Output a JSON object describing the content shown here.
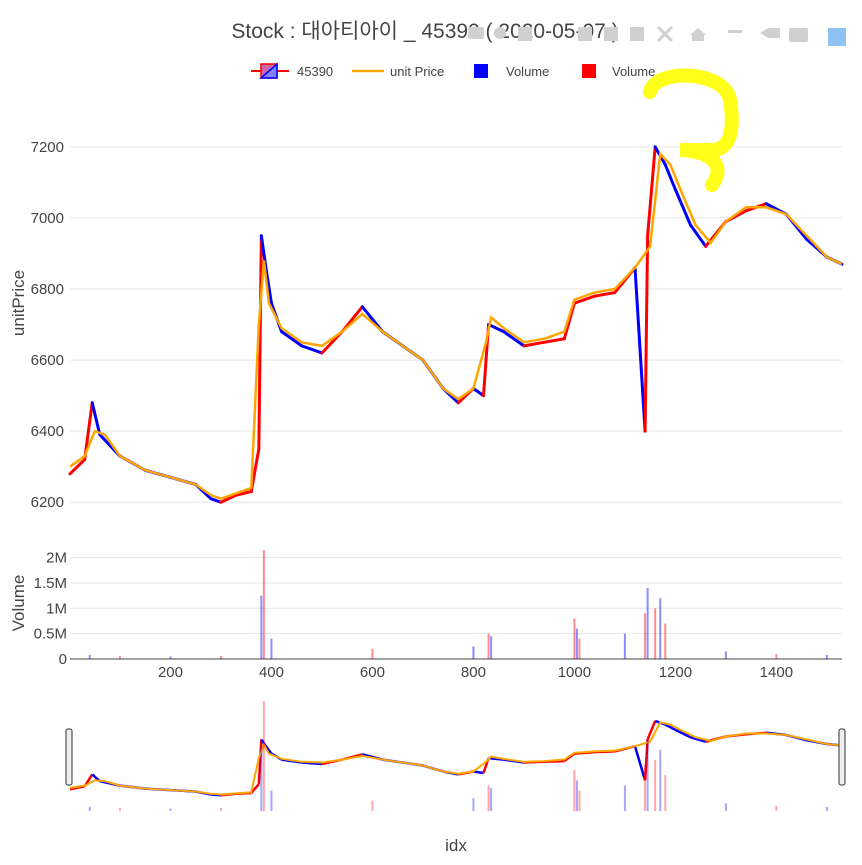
{
  "chart_data": {
    "type": "line",
    "title": "Stock :  대아티아이 _ 45390 ( 2020-05-07 )",
    "xlabel": "idx",
    "ylabel": "unitPrice",
    "volume_label": "Volume",
    "xlim": [
      1,
      1530
    ],
    "ylim": [
      6150,
      7360
    ],
    "volume_ylim": [
      0,
      2150000
    ],
    "x_ticks": [
      "200",
      "400",
      "600",
      "800",
      "1000",
      "1200",
      "1400"
    ],
    "x_tick_values": [
      200,
      400,
      600,
      800,
      1000,
      1200,
      1400
    ],
    "y_ticks": [
      "6200",
      "6400",
      "6600",
      "6800",
      "7000",
      "7200"
    ],
    "y_tick_values": [
      6200,
      6400,
      6600,
      6800,
      7000,
      7200
    ],
    "volume_ticks": [
      "0",
      "0.5M",
      "1M",
      "1.5M",
      "2M"
    ],
    "volume_tick_values": [
      0,
      500000,
      1000000,
      1500000,
      2000000
    ],
    "legend": [
      "45390",
      "unit Price",
      "Volume",
      "Volume"
    ],
    "legend_placement": "top-center",
    "grid": true,
    "colors": {
      "up": "#ff0000",
      "down": "#0000ff",
      "unit_price": "#ffa500",
      "volume_up": "#ff0000",
      "volume_down": "#0000ff",
      "annotation": "#ffff00"
    },
    "series": [
      {
        "name": "45390",
        "kind": "candlestick",
        "x": [
          1,
          30,
          45,
          60,
          100,
          150,
          200,
          250,
          280,
          300,
          330,
          360,
          375,
          380,
          390,
          400,
          420,
          460,
          500,
          540,
          580,
          620,
          660,
          700,
          740,
          770,
          800,
          820,
          830,
          860,
          900,
          940,
          980,
          1000,
          1040,
          1080,
          1120,
          1140,
          1145,
          1160,
          1180,
          1200,
          1230,
          1260,
          1300,
          1340,
          1380,
          1420,
          1460,
          1500,
          1530
        ],
        "close": [
          6280,
          6320,
          6480,
          6390,
          6330,
          6290,
          6270,
          6250,
          6210,
          6200,
          6220,
          6230,
          6350,
          6950,
          6850,
          6760,
          6680,
          6640,
          6620,
          6680,
          6750,
          6680,
          6640,
          6600,
          6520,
          6480,
          6520,
          6500,
          6700,
          6680,
          6640,
          6650,
          6660,
          6760,
          6780,
          6790,
          6860,
          6400,
          6950,
          7200,
          7150,
          7080,
          6980,
          6920,
          6990,
          7020,
          7040,
          7010,
          6940,
          6890,
          6870
        ]
      },
      {
        "name": "unit Price",
        "kind": "line",
        "x": [
          1,
          30,
          50,
          70,
          100,
          150,
          200,
          250,
          280,
          300,
          330,
          360,
          375,
          385,
          395,
          420,
          460,
          500,
          540,
          580,
          620,
          660,
          700,
          740,
          770,
          800,
          825,
          835,
          860,
          900,
          940,
          980,
          1000,
          1040,
          1080,
          1120,
          1150,
          1170,
          1190,
          1210,
          1240,
          1270,
          1300,
          1340,
          1380,
          1420,
          1460,
          1500,
          1530
        ],
        "values": [
          6300,
          6330,
          6400,
          6390,
          6330,
          6290,
          6270,
          6250,
          6220,
          6210,
          6225,
          6240,
          6700,
          6880,
          6760,
          6690,
          6650,
          6640,
          6680,
          6730,
          6680,
          6640,
          6600,
          6520,
          6490,
          6520,
          6650,
          6720,
          6690,
          6650,
          6660,
          6680,
          6770,
          6790,
          6800,
          6860,
          6920,
          7180,
          7150,
          7080,
          6980,
          6930,
          6990,
          7030,
          7030,
          7010,
          6950,
          6890,
          6870
        ]
      },
      {
        "name": "Volume",
        "kind": "bar",
        "x": [
          40,
          100,
          200,
          300,
          380,
          385,
          400,
          600,
          800,
          830,
          835,
          1000,
          1005,
          1010,
          1100,
          1140,
          1145,
          1160,
          1170,
          1180,
          1300,
          1400,
          1500
        ],
        "values": [
          80000,
          60000,
          50000,
          60000,
          1250000,
          2150000,
          400000,
          200000,
          250000,
          500000,
          450000,
          800000,
          600000,
          400000,
          500000,
          900000,
          1400000,
          1000000,
          1200000,
          700000,
          150000,
          100000,
          80000
        ]
      }
    ]
  }
}
